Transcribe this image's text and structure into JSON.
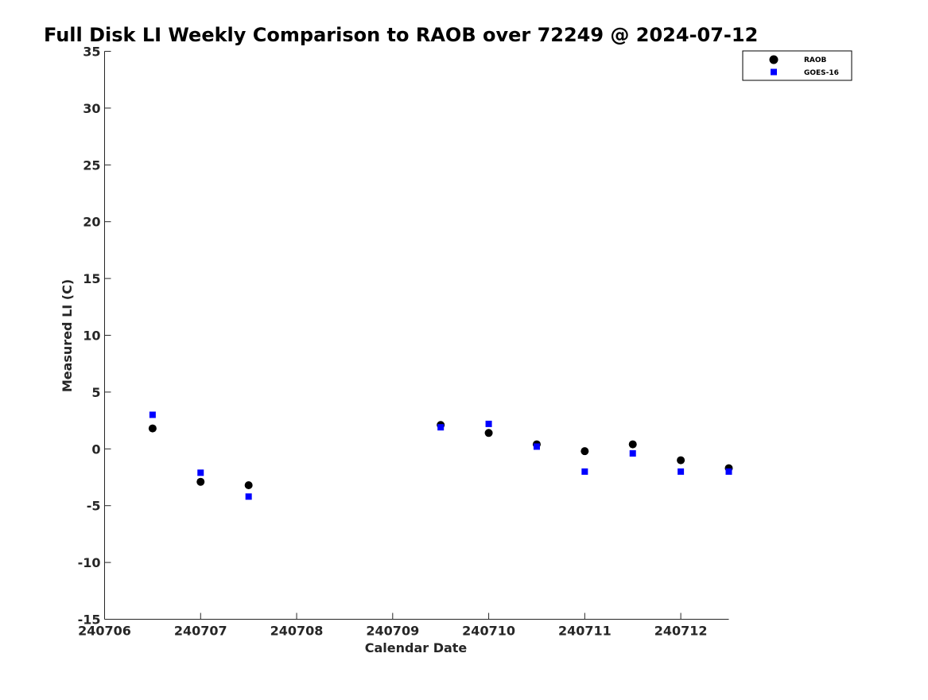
{
  "chart_data": {
    "type": "scatter",
    "title": "Full Disk LI Weekly Comparison to RAOB over 72249 @ 2024-07-12",
    "xlabel": "Calendar Date",
    "ylabel": "Measured LI (C)",
    "xlim": [
      240706,
      240712.5
    ],
    "ylim": [
      -15,
      35
    ],
    "x_ticks": [
      240706,
      240707,
      240708,
      240709,
      240710,
      240711,
      240712
    ],
    "x_tick_labels": [
      "240706",
      "240707",
      "240708",
      "240709",
      "240710",
      "240711",
      "240712"
    ],
    "y_ticks": [
      -15,
      -10,
      -5,
      0,
      5,
      10,
      15,
      20,
      25,
      30,
      35
    ],
    "y_tick_labels": [
      "-15",
      "-10",
      "-5",
      "0",
      "5",
      "10",
      "15",
      "20",
      "25",
      "30",
      "35"
    ],
    "grid": false,
    "legend_position": "top-right",
    "series": [
      {
        "name": "RAOB",
        "marker": "circle",
        "color": "#000000",
        "points": [
          {
            "x": 240706.5,
            "y": 1.8
          },
          {
            "x": 240707.0,
            "y": -2.9
          },
          {
            "x": 240707.5,
            "y": -3.2
          },
          {
            "x": 240709.5,
            "y": 2.1
          },
          {
            "x": 240710.0,
            "y": 1.4
          },
          {
            "x": 240710.5,
            "y": 0.4
          },
          {
            "x": 240711.0,
            "y": -0.2
          },
          {
            "x": 240711.5,
            "y": 0.4
          },
          {
            "x": 240712.0,
            "y": -1.0
          },
          {
            "x": 240712.5,
            "y": -1.7
          }
        ]
      },
      {
        "name": "GOES-16",
        "marker": "square",
        "color": "#0000ff",
        "points": [
          {
            "x": 240706.5,
            "y": 3.0
          },
          {
            "x": 240707.0,
            "y": -2.1
          },
          {
            "x": 240707.5,
            "y": -4.2
          },
          {
            "x": 240709.5,
            "y": 1.9
          },
          {
            "x": 240710.0,
            "y": 2.2
          },
          {
            "x": 240710.5,
            "y": 0.2
          },
          {
            "x": 240711.0,
            "y": -2.0
          },
          {
            "x": 240711.5,
            "y": -0.4
          },
          {
            "x": 240712.0,
            "y": -2.0
          },
          {
            "x": 240712.5,
            "y": -2.0
          }
        ]
      }
    ]
  }
}
